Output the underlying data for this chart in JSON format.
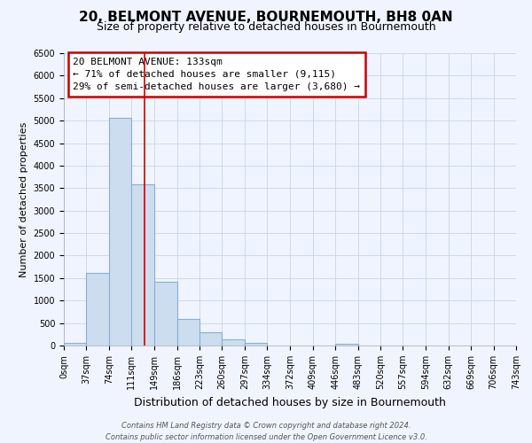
{
  "title": "20, BELMONT AVENUE, BOURNEMOUTH, BH8 0AN",
  "subtitle": "Size of property relative to detached houses in Bournemouth",
  "xlabel": "Distribution of detached houses by size in Bournemouth",
  "ylabel": "Number of detached properties",
  "bar_edges": [
    0,
    37,
    74,
    111,
    149,
    186,
    223,
    260,
    297,
    334,
    372,
    409,
    446,
    483,
    520,
    557,
    594,
    632,
    669,
    706,
    743
  ],
  "bar_heights": [
    60,
    1620,
    5060,
    3590,
    1420,
    600,
    300,
    140,
    50,
    0,
    0,
    0,
    35,
    0,
    0,
    0,
    0,
    0,
    0,
    0
  ],
  "bar_color": "#ccddf0",
  "bar_edgecolor": "#88afd0",
  "ylim": [
    0,
    6500
  ],
  "yticks": [
    0,
    500,
    1000,
    1500,
    2000,
    2500,
    3000,
    3500,
    4000,
    4500,
    5000,
    5500,
    6000,
    6500
  ],
  "property_size": 133,
  "vline_color": "#cc0000",
  "annotation_text": "20 BELMONT AVENUE: 133sqm\n← 71% of detached houses are smaller (9,115)\n29% of semi-detached houses are larger (3,680) →",
  "annotation_box_edgecolor": "#cc0000",
  "annotation_box_facecolor": "white",
  "footer_line1": "Contains HM Land Registry data © Crown copyright and database right 2024.",
  "footer_line2": "Contains public sector information licensed under the Open Government Licence v3.0.",
  "background_color": "#f0f4ff",
  "grid_color": "#c8d4e8",
  "title_fontsize": 11,
  "subtitle_fontsize": 9,
  "xlabel_fontsize": 9,
  "ylabel_fontsize": 8,
  "tick_fontsize": 7,
  "annot_fontsize": 8,
  "footer_fontsize": 6
}
